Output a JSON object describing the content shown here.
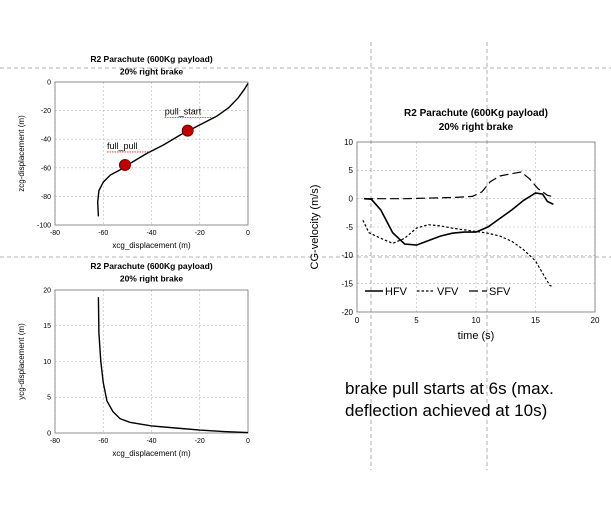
{
  "note": "brake pull starts at 6s (max. deflection achieved at 10s)",
  "chart_data": [
    {
      "type": "line",
      "title": "R2 Parachute (600Kg payload)",
      "subtitle": "20% right brake",
      "xlabel": "xcg_displacement (m)",
      "ylabel": "zcg-displacement (m)",
      "xlim": [
        -80,
        0
      ],
      "ylim": [
        -100,
        0
      ],
      "xticks": [
        -80,
        -60,
        -40,
        -20,
        0
      ],
      "yticks": [
        -100,
        -80,
        -60,
        -40,
        -20,
        0
      ],
      "grid": true,
      "series": [
        {
          "values": [
            [
              -62,
              -94
            ],
            [
              -62.3,
              -84
            ],
            [
              -61.8,
              -76
            ],
            [
              -60,
              -70
            ],
            [
              -57,
              -65
            ],
            [
              -53,
              -61.5
            ],
            [
              -48,
              -56
            ],
            [
              -42,
              -50
            ],
            [
              -35,
              -44
            ],
            [
              -28,
              -37
            ],
            [
              -20,
              -30
            ],
            [
              -13,
              -24
            ],
            [
              -8,
              -18
            ],
            [
              -4,
              -11
            ],
            [
              -1.5,
              -5
            ],
            [
              0,
              -1
            ]
          ]
        }
      ],
      "annotations": [
        {
          "label": "pull_start",
          "x": -25,
          "y": -34
        },
        {
          "label": "full_pull",
          "x": -51,
          "y": -58
        }
      ]
    },
    {
      "type": "line",
      "title": "R2 Parachute (600Kg payload)",
      "subtitle": "20% right brake",
      "xlabel": "xcg_displacement (m)",
      "ylabel": "ycg-displacement (m)",
      "xlim": [
        -80,
        0
      ],
      "ylim": [
        0,
        20
      ],
      "xticks": [
        -80,
        -60,
        -40,
        -20,
        0
      ],
      "yticks": [
        0,
        5,
        10,
        15,
        20
      ],
      "grid": true,
      "series": [
        {
          "values": [
            [
              -62,
              19
            ],
            [
              -61.8,
              14
            ],
            [
              -61,
              10
            ],
            [
              -60,
              7
            ],
            [
              -58.5,
              4.5
            ],
            [
              -56,
              3
            ],
            [
              -53,
              2
            ],
            [
              -49,
              1.5
            ],
            [
              -40,
              1
            ],
            [
              -30,
              0.7
            ],
            [
              -20,
              0.4
            ],
            [
              -10,
              0.2
            ],
            [
              0,
              0.05
            ]
          ]
        }
      ]
    },
    {
      "type": "line",
      "title": "R2 Parachute (600Kg payload)",
      "subtitle": "20% right brake",
      "xlabel": "time (s)",
      "ylabel": "CG-velocity (m/s)",
      "xlim": [
        0,
        20
      ],
      "ylim": [
        -20,
        10
      ],
      "xticks": [
        0,
        5,
        10,
        15,
        20
      ],
      "yticks": [
        -20,
        -15,
        -10,
        -5,
        0,
        5,
        10
      ],
      "grid": true,
      "legend": "bottom-left",
      "series": [
        {
          "name": "HFV",
          "values": [
            [
              0.6,
              0
            ],
            [
              1.2,
              -0.1
            ],
            [
              2,
              -2
            ],
            [
              3,
              -6
            ],
            [
              4,
              -8
            ],
            [
              5,
              -8.2
            ],
            [
              6,
              -7.4
            ],
            [
              7,
              -6.6
            ],
            [
              8,
              -6.1
            ],
            [
              9,
              -5.9
            ],
            [
              10,
              -5.9
            ],
            [
              11,
              -5
            ],
            [
              12,
              -3.5
            ],
            [
              13,
              -2
            ],
            [
              14,
              -0.3
            ],
            [
              15,
              1
            ],
            [
              15.6,
              0.8
            ],
            [
              16,
              -0.5
            ],
            [
              16.5,
              -1
            ]
          ]
        },
        {
          "name": "VFV",
          "values": [
            [
              0.5,
              -3.8
            ],
            [
              1,
              -6
            ],
            [
              2,
              -7
            ],
            [
              3,
              -7.9
            ],
            [
              4,
              -7
            ],
            [
              5,
              -5.2
            ],
            [
              6,
              -4.6
            ],
            [
              7,
              -4.8
            ],
            [
              8,
              -5.2
            ],
            [
              9,
              -5.5
            ],
            [
              10,
              -5.8
            ],
            [
              11,
              -6.1
            ],
            [
              12,
              -6.6
            ],
            [
              13,
              -7.5
            ],
            [
              14,
              -9
            ],
            [
              15,
              -11
            ],
            [
              15.7,
              -13.5
            ],
            [
              16.2,
              -15.3
            ],
            [
              16.5,
              -15.6
            ]
          ]
        },
        {
          "name": "SFV",
          "values": [
            [
              0.6,
              0
            ],
            [
              2,
              0
            ],
            [
              4,
              0
            ],
            [
              6,
              0.1
            ],
            [
              8,
              0.2
            ],
            [
              9.7,
              0.4
            ],
            [
              10.5,
              1.2
            ],
            [
              11.2,
              3
            ],
            [
              12,
              4
            ],
            [
              13,
              4.4
            ],
            [
              13.8,
              4.7
            ],
            [
              14.5,
              3.5
            ],
            [
              15.2,
              1.8
            ],
            [
              16,
              0.6
            ],
            [
              16.6,
              0.3
            ]
          ]
        }
      ]
    }
  ]
}
